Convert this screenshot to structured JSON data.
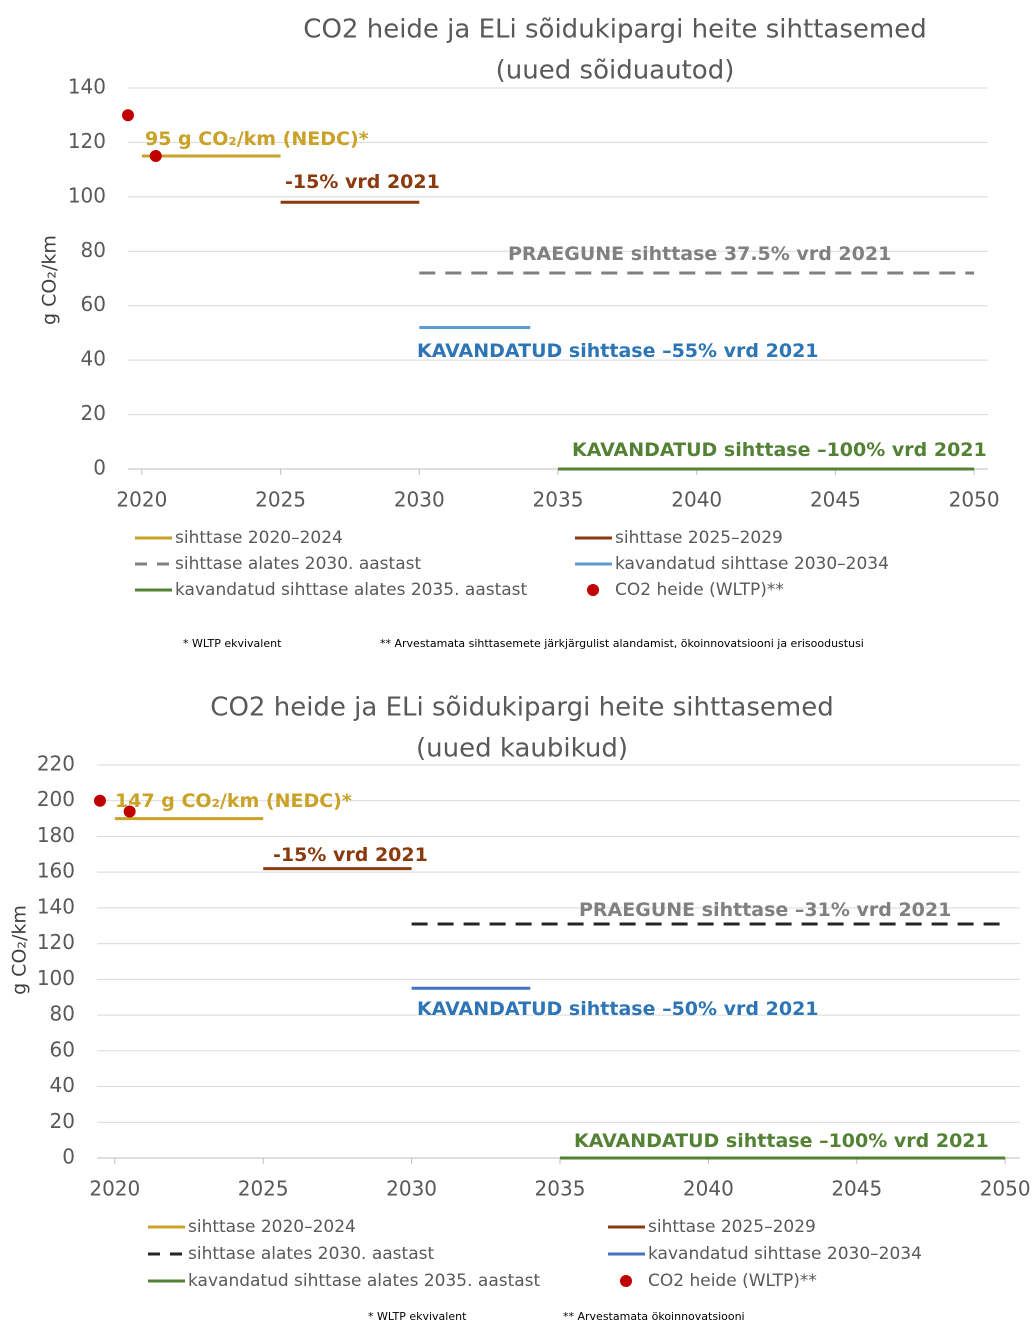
{
  "chart_data": [
    {
      "type": "line",
      "title": "CO2 heide ja ELi sõidukipargi heite sihttasemed",
      "subtitle": "(uued sõiduautod)",
      "y_label": "g CO₂/km",
      "xlim": [
        2019.5,
        2050.5
      ],
      "xticks": [
        2020,
        2025,
        2030,
        2035,
        2040,
        2045,
        2050
      ],
      "ylim": [
        0,
        140
      ],
      "yticks": [
        0,
        20,
        40,
        60,
        80,
        100,
        120,
        140
      ],
      "grid": true,
      "series": [
        {
          "name": "sihttase 2020–2024",
          "color": "#c9a227",
          "x": [
            2020,
            2025
          ],
          "values": [
            115,
            115
          ]
        },
        {
          "name": "sihttase 2025–2029",
          "color": "#8b3a0f",
          "x": [
            2025,
            2030
          ],
          "values": [
            98,
            98
          ]
        },
        {
          "name": "sihttase alates 2030. aastast",
          "color": "#808080",
          "dash": true,
          "x": [
            2030,
            2050
          ],
          "values": [
            72,
            72
          ]
        },
        {
          "name": "kavandatud sihttase 2030–2034",
          "color": "#5b9bd5",
          "x": [
            2030,
            2034
          ],
          "values": [
            52,
            52
          ]
        },
        {
          "name": "kavandatud sihttase alates 2035. aastast",
          "color": "#548235",
          "x": [
            2035,
            2050
          ],
          "values": [
            0,
            0
          ]
        },
        {
          "name": "CO2 heide (WLTP)**",
          "color": "#c00000",
          "type": "scatter",
          "x": [
            2019.5,
            2020.5
          ],
          "values": [
            130,
            115
          ]
        }
      ],
      "annotations": [
        {
          "text": "95 g CO₂/km (NEDC)*",
          "color": "#c9a227"
        },
        {
          "text": "-15% vrd 2021",
          "color": "#8b3a0f"
        },
        {
          "text": "PRAEGUNE sihttase 37.5% vrd 2021",
          "color": "#808080"
        },
        {
          "text": "KAVANDATUD sihttase –55% vrd 2021",
          "color": "#2e75b6"
        },
        {
          "text": "KAVANDATUD sihttase –100% vrd 2021",
          "color": "#548235"
        }
      ],
      "footnotes": [
        "* WLTP ekvivalent",
        "** Arvestamata sihttasemete järkjärgulist alandamist, ökoinnovatsiooni ja erisoodustusi"
      ]
    },
    {
      "type": "line",
      "title": "CO2 heide ja ELi sõidukipargi heite sihttasemed",
      "subtitle": "(uued kaubikud)",
      "y_label": "g CO₂/km",
      "xlim": [
        2019.4,
        2050.5
      ],
      "xticks": [
        2020,
        2025,
        2030,
        2035,
        2040,
        2045,
        2050
      ],
      "ylim": [
        0,
        220
      ],
      "yticks": [
        0,
        20,
        40,
        60,
        80,
        100,
        120,
        140,
        160,
        180,
        200,
        220
      ],
      "grid": true,
      "series": [
        {
          "name": "sihttase 2020–2024",
          "color": "#c9a227",
          "x": [
            2020,
            2025
          ],
          "values": [
            190,
            190
          ]
        },
        {
          "name": "sihttase 2025–2029",
          "color": "#8b3a0f",
          "x": [
            2025,
            2030
          ],
          "values": [
            162,
            162
          ]
        },
        {
          "name": "sihttase alates 2030. aastast",
          "color": "#262626",
          "dash": true,
          "x": [
            2030,
            2050
          ],
          "values": [
            131,
            131
          ]
        },
        {
          "name": "kavandatud sihttase 2030–2034",
          "color": "#4472c4",
          "x": [
            2030,
            2034
          ],
          "values": [
            95,
            95
          ]
        },
        {
          "name": "kavandatud sihttase alates 2035. aastast",
          "color": "#548235",
          "x": [
            2035,
            2050
          ],
          "values": [
            0,
            0
          ]
        },
        {
          "name": "CO2 heide (WLTP)**",
          "color": "#c00000",
          "type": "scatter",
          "x": [
            2019.5,
            2020.5
          ],
          "values": [
            200,
            194
          ]
        }
      ],
      "annotations": [
        {
          "text": "147 g CO₂/km (NEDC)*",
          "color": "#c9a227"
        },
        {
          "text": "-15% vrd 2021",
          "color": "#8b3a0f"
        },
        {
          "text": "PRAEGUNE sihttase –31% vrd 2021",
          "color": "#808080"
        },
        {
          "text": "KAVANDATUD sihttase –50% vrd 2021",
          "color": "#2e75b6"
        },
        {
          "text": "KAVANDATUD sihttase –100% vrd 2021",
          "color": "#548235"
        }
      ],
      "footnotes": [
        "* WLTP ekvivalent",
        "** Arvestamata ökoinnovatsiooni"
      ]
    }
  ]
}
